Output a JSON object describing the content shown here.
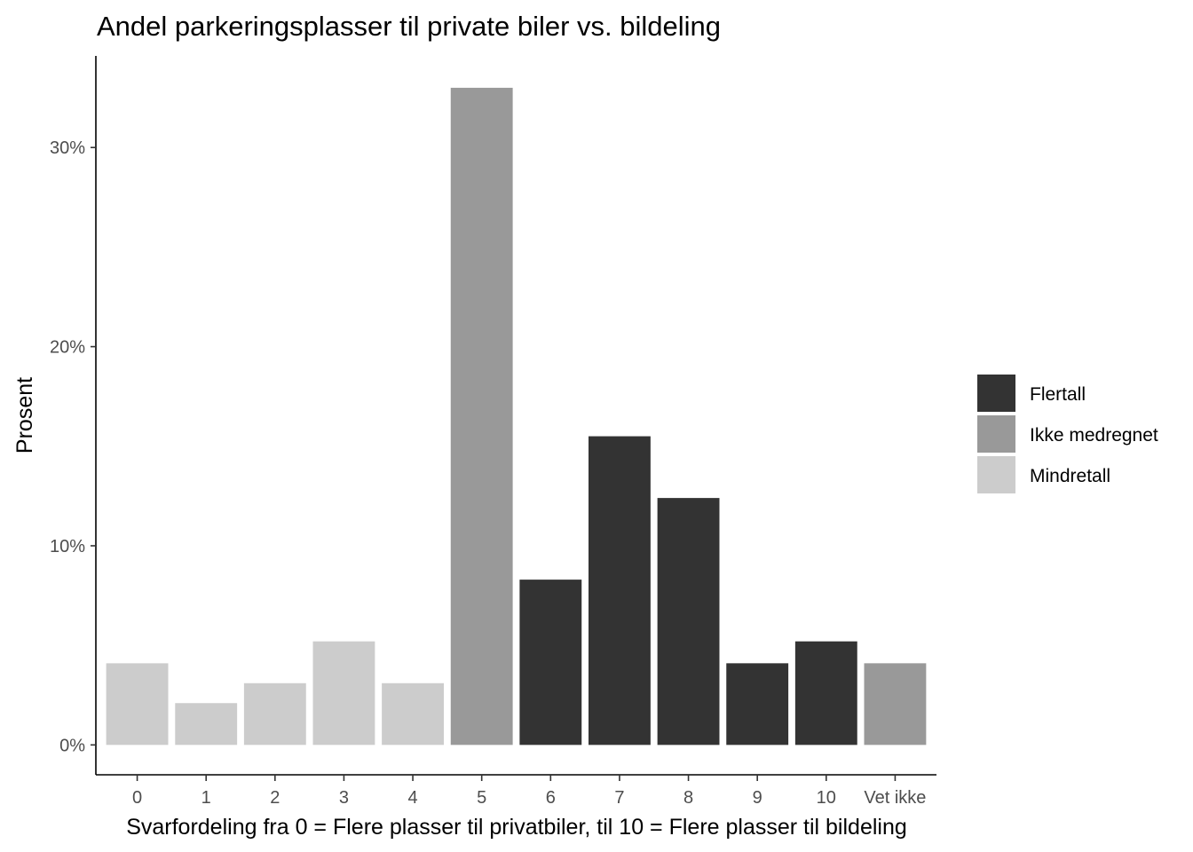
{
  "chart_data": {
    "type": "bar",
    "title": "Andel parkeringsplasser til private biler vs. bildeling",
    "xlabel": "Svarfordeling fra 0 = Flere plasser til privatbiler, til 10 = Flere plasser til bildeling",
    "ylabel": "Prosent",
    "categories": [
      "0",
      "1",
      "2",
      "3",
      "4",
      "5",
      "6",
      "7",
      "8",
      "9",
      "10",
      "Vet ikke"
    ],
    "values": [
      4.1,
      2.1,
      3.1,
      5.2,
      3.1,
      33.0,
      8.3,
      15.5,
      12.4,
      4.1,
      5.2,
      4.1
    ],
    "groups": [
      "Mindretall",
      "Mindretall",
      "Mindretall",
      "Mindretall",
      "Mindretall",
      "Ikke medregnet",
      "Flertall",
      "Flertall",
      "Flertall",
      "Flertall",
      "Flertall",
      "Ikke medregnet"
    ],
    "ylim": [
      -1.5,
      34.6
    ],
    "yticks": [
      0,
      10,
      20,
      30
    ],
    "ytick_labels": [
      "0%",
      "10%",
      "20%",
      "30%"
    ],
    "grid": false,
    "legend": {
      "position": "right",
      "entries": [
        {
          "name": "Flertall",
          "color": "#333333"
        },
        {
          "name": "Ikke medregnet",
          "color": "#999999"
        },
        {
          "name": "Mindretall",
          "color": "#cccccc"
        }
      ]
    }
  }
}
